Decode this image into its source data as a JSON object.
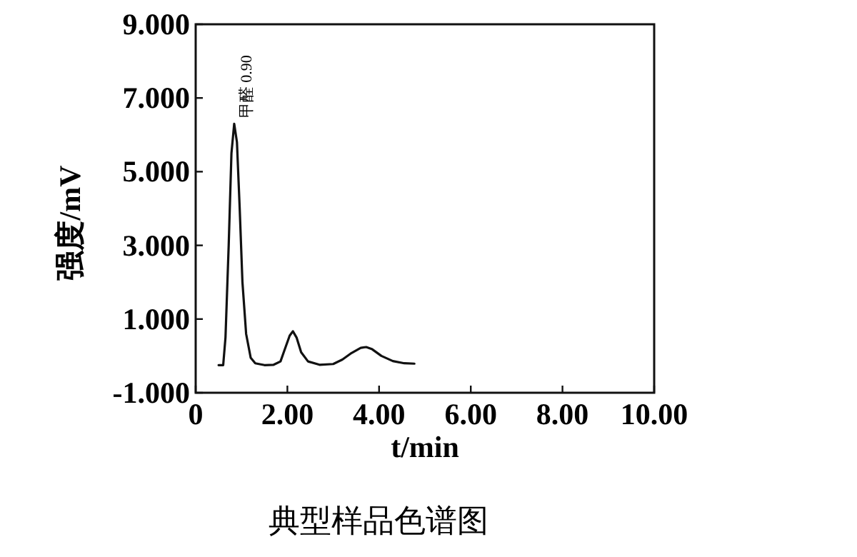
{
  "chart_data": {
    "type": "line",
    "title": "典型样品色谱图",
    "xlabel": "t/min",
    "ylabel": "强度/mV",
    "x": [
      0.5,
      0.6,
      0.65,
      0.72,
      0.78,
      0.84,
      0.9,
      0.96,
      1.02,
      1.1,
      1.2,
      1.3,
      1.5,
      1.7,
      1.85,
      1.95,
      2.05,
      2.12,
      2.2,
      2.3,
      2.45,
      2.7,
      3.0,
      3.2,
      3.4,
      3.6,
      3.72,
      3.85,
      4.05,
      4.3,
      4.55,
      4.77
    ],
    "series": [
      {
        "color": "#111111",
        "values": [
          -0.25,
          -0.25,
          0.5,
          3.0,
          5.5,
          6.3,
          5.8,
          4.0,
          2.0,
          0.6,
          -0.05,
          -0.2,
          -0.25,
          -0.24,
          -0.15,
          0.2,
          0.55,
          0.67,
          0.5,
          0.1,
          -0.15,
          -0.24,
          -0.22,
          -0.1,
          0.08,
          0.22,
          0.24,
          0.18,
          0.0,
          -0.14,
          -0.2,
          -0.21
        ]
      }
    ],
    "annotations": [
      {
        "text": "甲醛 0.90",
        "x": 0.9,
        "y": 6.3
      }
    ],
    "xlim": [
      0,
      10
    ],
    "ylim": [
      -1,
      9
    ],
    "xticks": [
      0,
      {
        "value": 2,
        "label": "2.00"
      },
      {
        "value": 4,
        "label": "4.00"
      },
      {
        "value": 6,
        "label": "6.00"
      },
      {
        "value": 8,
        "label": "8.00"
      },
      {
        "value": 10,
        "label": "10.00"
      }
    ],
    "yticks": [
      {
        "value": -1,
        "label": "-1.000"
      },
      {
        "value": 1,
        "label": "1.000"
      },
      {
        "value": 3,
        "label": "3.000"
      },
      {
        "value": 5,
        "label": "5.000"
      },
      {
        "value": 7,
        "label": "7.000"
      },
      {
        "value": 9,
        "label": "9.000"
      }
    ],
    "grid": false,
    "marker": "none",
    "line_style": "solid"
  }
}
